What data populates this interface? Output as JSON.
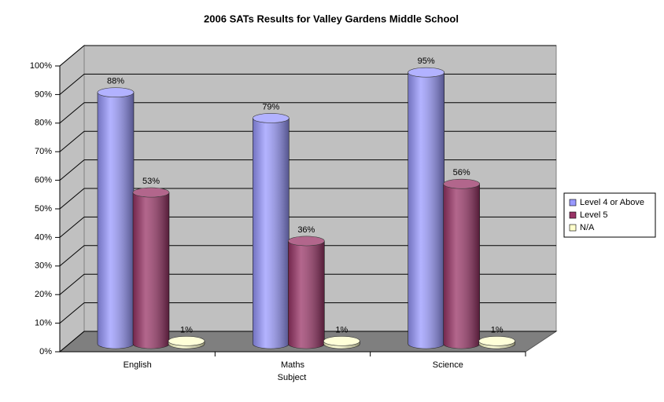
{
  "chart_data": {
    "type": "bar3d-cylinder",
    "title": "2006 SATs Results for Valley Gardens Middle School",
    "x_label": "Subject",
    "categories": [
      "English",
      "Maths",
      "Science"
    ],
    "series": [
      {
        "name": "Level 4 or Above",
        "color": "#9999ff",
        "values": [
          88,
          79,
          95
        ],
        "value_labels": [
          "88%",
          "79%",
          "95%"
        ]
      },
      {
        "name": "Level 5",
        "color": "#993366",
        "values": [
          53,
          36,
          56
        ],
        "value_labels": [
          "53%",
          "36%",
          "56%"
        ]
      },
      {
        "name": "N/A",
        "color": "#ffffcc",
        "values": [
          1,
          1,
          1
        ],
        "value_labels": [
          "1%",
          "1%",
          "1%"
        ]
      }
    ],
    "ylim": [
      0,
      100
    ],
    "yticks": [
      {
        "value": 0,
        "label": "0%"
      },
      {
        "value": 10,
        "label": "10%"
      },
      {
        "value": 20,
        "label": "20%"
      },
      {
        "value": 30,
        "label": "30%"
      },
      {
        "value": 40,
        "label": "40%"
      },
      {
        "value": 50,
        "label": "50%"
      },
      {
        "value": 60,
        "label": "60%"
      },
      {
        "value": 70,
        "label": "70%"
      },
      {
        "value": 80,
        "label": "80%"
      },
      {
        "value": 90,
        "label": "90%"
      },
      {
        "value": 100,
        "label": "100%"
      }
    ],
    "grid": true,
    "legend": "right"
  }
}
